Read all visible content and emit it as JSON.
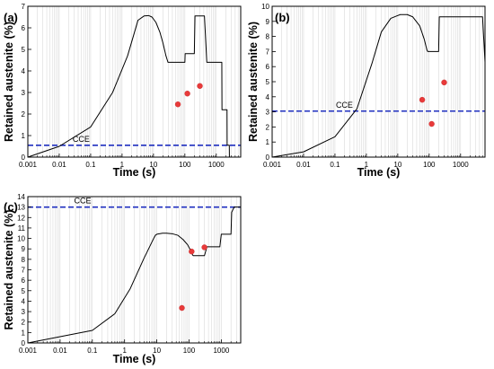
{
  "chart_data": [
    {
      "panel": "(a)",
      "type": "line",
      "xlabel": "Time (s)",
      "ylabel": "Retained austenite (%)",
      "xscale": "log",
      "xlim": [
        0.001,
        6000
      ],
      "ylim": [
        0,
        7
      ],
      "xticks": [
        0.001,
        0.01,
        0.1,
        1,
        10,
        100,
        1000
      ],
      "xtick_labels": [
        "0.001",
        "0.01",
        "0.1",
        "1",
        "10",
        "100",
        "1000"
      ],
      "yticks": [
        0,
        1,
        2,
        3,
        4,
        5,
        6,
        7
      ],
      "ytick_labels": [
        "0",
        "1",
        "2",
        "3",
        "4",
        "5",
        "6",
        "7"
      ],
      "grid": "x",
      "curve": {
        "x": [
          0.001,
          0.01,
          0.1,
          0.5,
          1.5,
          3,
          3.2,
          5,
          7,
          9,
          12,
          16,
          20,
          25,
          29,
          30,
          100,
          102,
          110,
          200,
          210,
          400,
          420,
          500,
          1500,
          1520,
          2200,
          2220,
          2600,
          2620,
          3000
        ],
        "y": [
          0,
          0.5,
          1.4,
          3.0,
          4.7,
          6.2,
          6.35,
          6.55,
          6.57,
          6.5,
          6.25,
          5.8,
          5.3,
          4.7,
          4.4,
          4.4,
          4.4,
          4.8,
          4.8,
          4.8,
          6.55,
          6.55,
          6.55,
          4.4,
          4.4,
          2.2,
          2.2,
          0.55,
          0.55,
          0,
          0
        ]
      },
      "points": {
        "x": [
          60,
          120,
          300
        ],
        "y": [
          2.45,
          2.95,
          3.3
        ]
      },
      "cce": {
        "label": "CCE",
        "y": 0.55
      }
    },
    {
      "panel": "(b)",
      "type": "line",
      "xlabel": "Time (s)",
      "ylabel": "Retained austenite (%)",
      "xscale": "log",
      "xlim": [
        0.001,
        6000
      ],
      "ylim": [
        0,
        10
      ],
      "xticks": [
        0.001,
        0.01,
        0.1,
        1,
        10,
        100,
        1000
      ],
      "xtick_labels": [
        "0.001",
        "0.01",
        "0.1",
        "1",
        "10",
        "100",
        "1000"
      ],
      "yticks": [
        0,
        1,
        2,
        3,
        4,
        5,
        6,
        7,
        8,
        9,
        10
      ],
      "ytick_labels": [
        "0",
        "1",
        "2",
        "3",
        "4",
        "5",
        "6",
        "7",
        "8",
        "9",
        "10"
      ],
      "grid": "x",
      "curve": {
        "x": [
          0.001,
          0.01,
          0.1,
          0.5,
          1.5,
          3,
          6,
          9,
          12,
          20,
          30,
          50,
          70,
          85,
          90,
          200,
          210,
          300,
          1500,
          1520,
          5000,
          6000
        ],
        "y": [
          0,
          0.35,
          1.35,
          3.2,
          6.2,
          8.3,
          9.2,
          9.35,
          9.45,
          9.45,
          9.3,
          8.7,
          7.8,
          7.1,
          7.0,
          7.0,
          9.3,
          9.3,
          9.3,
          9.3,
          9.3,
          6.3
        ]
      },
      "points": {
        "x": [
          60,
          120,
          300
        ],
        "y": [
          3.8,
          2.2,
          4.95
        ]
      },
      "cce": {
        "label": "CCE",
        "y": 3.05
      }
    },
    {
      "panel": "(c)",
      "type": "line",
      "xlabel": "Time (s)",
      "ylabel": "Retained austenite (%)",
      "xscale": "log",
      "xlim": [
        0.001,
        4000
      ],
      "ylim": [
        0,
        14
      ],
      "xticks": [
        0.001,
        0.01,
        0.1,
        1,
        10,
        100,
        1000
      ],
      "xtick_labels": [
        "0.001",
        "0.01",
        "0.1",
        "1",
        "10",
        "100",
        "1000"
      ],
      "yticks": [
        0,
        1,
        2,
        3,
        4,
        5,
        6,
        7,
        8,
        9,
        10,
        11,
        12,
        13,
        14
      ],
      "ytick_labels": [
        "0",
        "1",
        "2",
        "3",
        "4",
        "5",
        "6",
        "7",
        "8",
        "9",
        "10",
        "11",
        "12",
        "13",
        "14"
      ],
      "grid": "x",
      "curve": {
        "x": [
          0.001,
          0.01,
          0.1,
          0.5,
          1.5,
          4,
          8,
          9,
          10,
          15,
          20,
          30,
          45,
          65,
          90,
          110,
          130,
          135,
          300,
          360,
          900,
          1000,
          1500,
          2000,
          2100,
          2500,
          4000
        ],
        "y": [
          0,
          0.6,
          1.2,
          2.8,
          5.2,
          8.1,
          10.0,
          10.3,
          10.4,
          10.5,
          10.5,
          10.45,
          10.3,
          9.9,
          9.4,
          8.9,
          8.4,
          8.35,
          8.35,
          9.2,
          9.2,
          10.4,
          10.4,
          10.4,
          12.5,
          13.0,
          13.0
        ]
      },
      "points": {
        "x": [
          60,
          120,
          300
        ],
        "y": [
          3.35,
          8.75,
          9.15
        ]
      },
      "cce": {
        "label": "CCE",
        "y": 13.0
      }
    }
  ]
}
